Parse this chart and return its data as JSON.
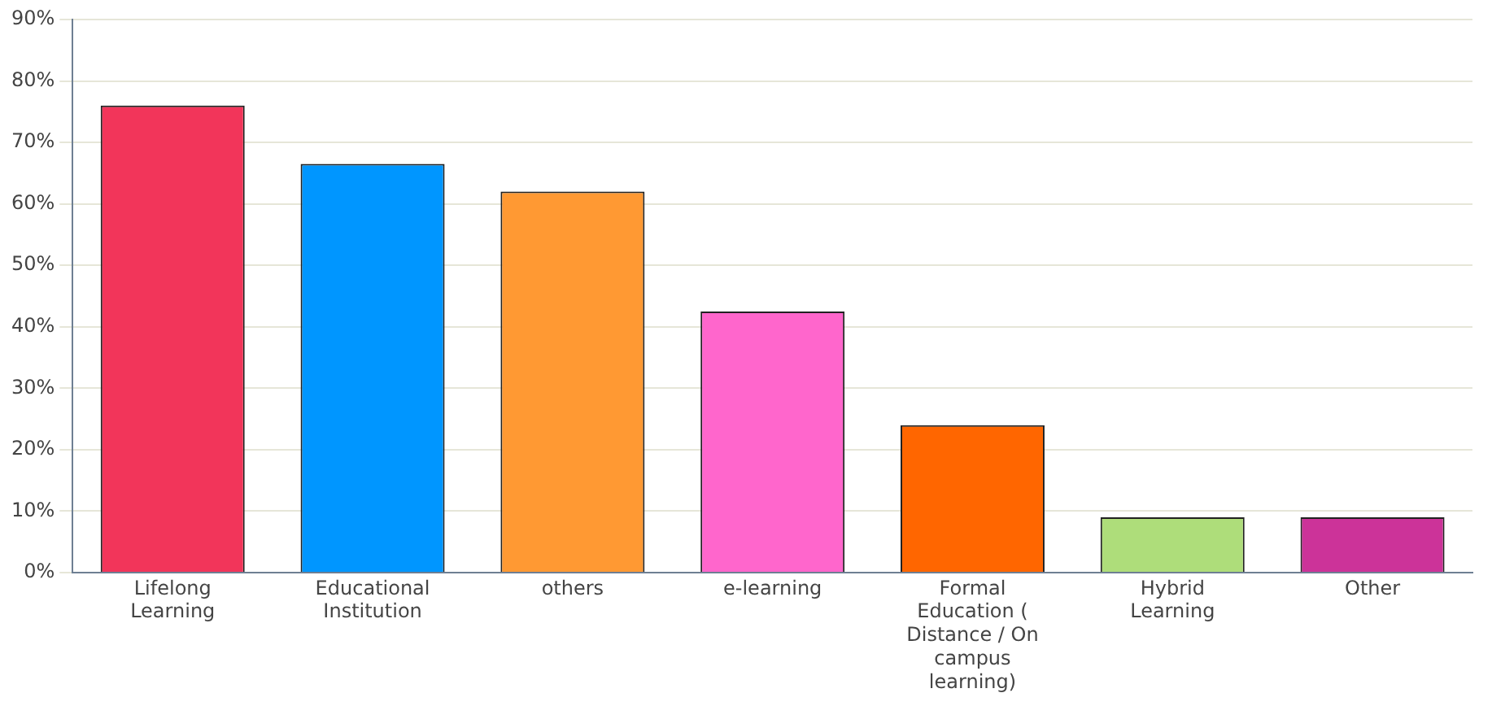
{
  "chart_data": {
    "type": "bar",
    "categories": [
      "Lifelong Learning",
      "Educational Institution",
      "others",
      "e-learning",
      "Formal Education ( Distance / On campus learning)",
      "Hybrid Learning",
      "Other"
    ],
    "values": [
      76,
      66.5,
      62,
      42.5,
      24,
      9,
      9
    ],
    "colors": [
      "#f2355a",
      "#0096ff",
      "#ff9933",
      "#ff66cc",
      "#ff6600",
      "#aedd7a",
      "#cc3399"
    ],
    "ylim": [
      0,
      90
    ],
    "yticks": [
      {
        "value": 0,
        "label": "0%"
      },
      {
        "value": 10,
        "label": "10%"
      },
      {
        "value": 20,
        "label": "20%"
      },
      {
        "value": 30,
        "label": "30%"
      },
      {
        "value": 40,
        "label": "40%"
      },
      {
        "value": 50,
        "label": "50%"
      },
      {
        "value": 60,
        "label": "60%"
      },
      {
        "value": 70,
        "label": "70%"
      },
      {
        "value": 80,
        "label": "80%"
      },
      {
        "value": 90,
        "label": "90%"
      }
    ],
    "grid": "y"
  }
}
